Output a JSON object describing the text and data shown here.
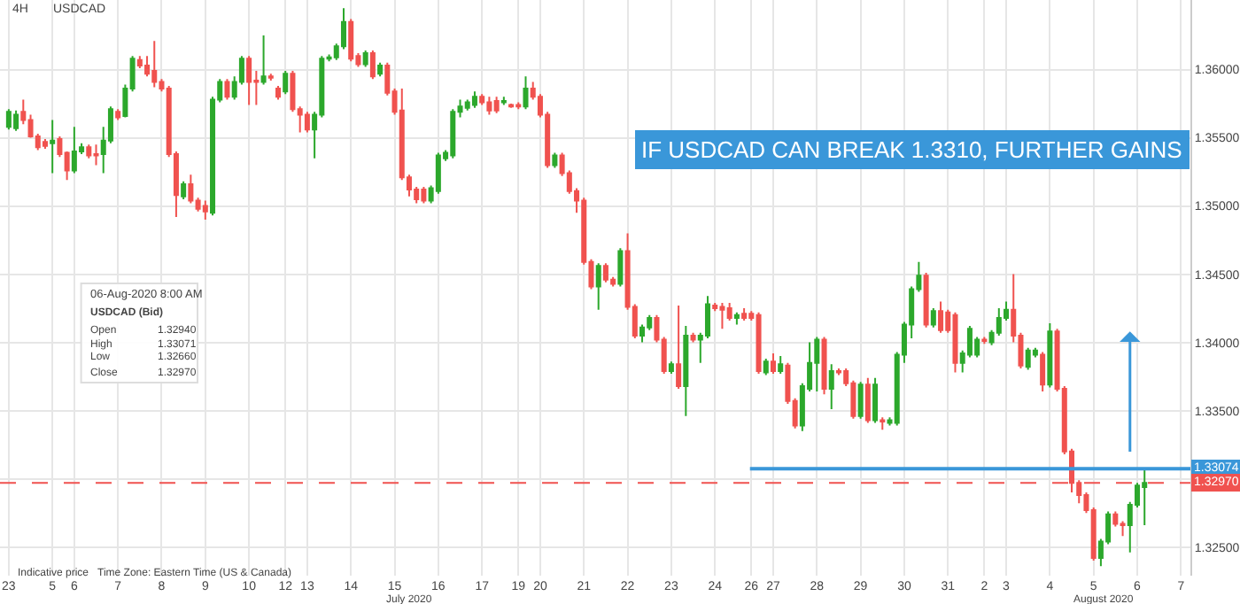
{
  "chart_data": {
    "type": "candlestick",
    "title": "IF USDCAD CAN BREAK 1.3310, FURTHER GAINS",
    "annotations": [
      "4H",
      "USDCAD",
      "06-Aug-2020 8:00 AM",
      "USDCAD (Bid)",
      "Open",
      "1.32940",
      "High",
      "1.33071",
      "Low",
      "1.32660",
      "Close",
      "1.32970",
      "Indicative price",
      "Time Zone: Eastern Time (US & Canada)",
      "July 2020",
      "August 2020"
    ],
    "categories": [
      "23",
      null,
      null,
      null,
      null,
      null,
      "5",
      null,
      null,
      "6",
      null,
      null,
      null,
      null,
      null,
      "7",
      null,
      null,
      null,
      null,
      null,
      "8",
      null,
      null,
      null,
      null,
      null,
      "9",
      null,
      null,
      null,
      null,
      null,
      "10",
      null,
      null,
      null,
      null,
      "12",
      null,
      null,
      "13",
      null,
      null,
      null,
      null,
      null,
      "14",
      null,
      null,
      null,
      null,
      null,
      "15",
      null,
      null,
      null,
      null,
      null,
      "16",
      null,
      null,
      null,
      null,
      null,
      "17",
      null,
      null,
      null,
      null,
      "19",
      null,
      null,
      "20",
      null,
      null,
      null,
      null,
      null,
      "21",
      null,
      null,
      null,
      null,
      null,
      "22",
      null,
      null,
      null,
      null,
      null,
      "23",
      null,
      null,
      null,
      null,
      null,
      "24",
      null,
      null,
      null,
      null,
      "26",
      null,
      null,
      "27",
      null,
      null,
      null,
      null,
      null,
      "28",
      null,
      null,
      null,
      null,
      null,
      "29",
      null,
      null,
      null,
      null,
      null,
      "30",
      null,
      null,
      null,
      null,
      null,
      "31",
      null,
      null,
      null,
      null,
      "2",
      null,
      null,
      "3",
      null,
      null,
      null,
      null,
      null,
      "4",
      null,
      null,
      null,
      null,
      null,
      "5",
      null,
      null,
      null,
      null,
      null,
      "6",
      null,
      null,
      null,
      null,
      null,
      "7"
    ],
    "colors": [
      "#2ca82c",
      "#2ca82c",
      "#f0524f",
      "#f0524f",
      "#f0524f",
      "#f0524f",
      "#2ca82c",
      "#f0524f",
      "#f0524f",
      "#2ca82c",
      "#2ca82c",
      "#f0524f",
      "#f0524f",
      "#2ca82c",
      "#2ca82c",
      "#f0524f",
      "#2ca82c",
      "#2ca82c",
      "#f0524f",
      "#f0524f",
      "#f0524f",
      "#f0524f",
      "#f0524f",
      "#f0524f",
      "#2ca82c",
      "#f0524f",
      "#f0524f",
      "#f0524f",
      "#2ca82c",
      "#2ca82c",
      "#f0524f",
      "#2ca82c",
      "#2ca82c",
      "#f0524f",
      "#f0524f",
      "#2ca82c",
      "#f0524f",
      "#f0524f",
      "#2ca82c",
      "#f0524f",
      "#f0524f",
      "#f0524f",
      "#2ca82c",
      "#2ca82c",
      "#2ca82c",
      "#2ca82c",
      "#2ca82c",
      "#f0524f",
      "#f0524f",
      "#2ca82c",
      "#f0524f",
      "#2ca82c",
      "#f0524f",
      "#f0524f",
      "#f0524f",
      "#f0524f",
      "#f0524f",
      "#f0524f",
      "#2ca82c",
      "#2ca82c",
      "#2ca82c",
      "#2ca82c",
      "#2ca82c",
      "#2ca82c",
      "#2ca82c",
      "#f0524f",
      "#f0524f",
      "#f0524f",
      "#2ca82c",
      "#f0524f",
      "#f0524f",
      "#2ca82c",
      "#f0524f",
      "#f0524f",
      "#f0524f",
      "#2ca82c",
      "#f0524f",
      "#f0524f",
      "#f0524f",
      "#f0524f",
      "#f0524f",
      "#2ca82c",
      "#f0524f",
      "#f0524f",
      "#2ca82c",
      "#f0524f",
      "#f0524f",
      "#2ca82c",
      "#2ca82c",
      "#f0524f",
      "#f0524f",
      "#2ca82c",
      "#f0524f",
      "#2ca82c",
      "#f0524f",
      "#2ca82c",
      "#2ca82c",
      "#f0524f",
      "#f0524f",
      "#f0524f",
      "#2ca82c",
      "#f0524f",
      "#f0524f",
      "#f0524f",
      "#2ca82c",
      "#f0524f",
      "#2ca82c",
      "#f0524f",
      "#f0524f",
      "#2ca82c",
      "#2ca82c",
      "#2ca82c",
      "#f0524f",
      "#2ca82c",
      "#f0524f",
      "#f0524f",
      "#f0524f",
      "#2ca82c",
      "#f0524f",
      "#2ca82c",
      "#f0524f",
      "#2ca82c",
      "#2ca82c",
      "#2ca82c",
      "#2ca82c",
      "#2ca82c",
      "#f0524f",
      "#2ca82c",
      "#f0524f",
      "#f0524f",
      "#f0524f",
      "#2ca82c",
      "#2ca82c",
      "#2ca82c",
      "#f0524f",
      "#2ca82c",
      "#2ca82c",
      "#2ca82c",
      "#f0524f",
      "#f0524f",
      "#2ca82c",
      "#2ca82c",
      "#f0524f",
      "#2ca82c",
      "#f0524f",
      "#f0524f",
      "#f0524f",
      "#f0524f",
      "#f0524f",
      "#f0524f",
      "#2ca82c",
      "#2ca82c",
      "#f0524f",
      "#f0524f",
      "#2ca82c",
      "#2ca82c",
      "#2ca82c",
      null,
      null,
      null,
      null,
      null
    ],
    "ohlc": [
      [
        1.3558,
        1.3571,
        1.3556,
        1.3569
      ],
      [
        1.3557,
        1.357,
        1.3555,
        1.3567
      ],
      [
        1.3569,
        1.3578,
        1.356,
        1.3563
      ],
      [
        1.3563,
        1.3567,
        1.355,
        1.3551
      ],
      [
        1.3551,
        1.3553,
        1.3541,
        1.3543
      ],
      [
        1.3547,
        1.3549,
        1.3542,
        1.3544
      ],
      [
        1.3546,
        1.3563,
        1.3524,
        1.3548
      ],
      [
        1.3549,
        1.3551,
        1.3536,
        1.3538
      ],
      [
        1.3539,
        1.354,
        1.3519,
        1.3526
      ],
      [
        1.3526,
        1.3558,
        1.3524,
        1.354
      ],
      [
        1.354,
        1.3546,
        1.3538,
        1.3543
      ],
      [
        1.3543,
        1.3545,
        1.3535,
        1.3537
      ],
      [
        1.3538,
        1.3545,
        1.353,
        1.3537
      ],
      [
        1.3538,
        1.3558,
        1.3524,
        1.3548
      ],
      [
        1.3548,
        1.3573,
        1.3546,
        1.3571
      ],
      [
        1.3569,
        1.3571,
        1.3563,
        1.3565
      ],
      [
        1.3566,
        1.3589,
        1.3565,
        1.3586
      ],
      [
        1.3586,
        1.361,
        1.3584,
        1.3608
      ],
      [
        1.3607,
        1.361,
        1.3601,
        1.3603
      ],
      [
        1.3603,
        1.361,
        1.3595,
        1.3597
      ],
      [
        1.3599,
        1.3621,
        1.3587,
        1.3591
      ],
      [
        1.3591,
        1.3593,
        1.3584,
        1.3586
      ],
      [
        1.3586,
        1.3588,
        1.3536,
        1.3538
      ],
      [
        1.3538,
        1.354,
        1.3492,
        1.3508
      ],
      [
        1.3507,
        1.3518,
        1.3505,
        1.3516
      ],
      [
        1.3516,
        1.3523,
        1.3502,
        1.3504
      ],
      [
        1.3504,
        1.3506,
        1.3496,
        1.3498
      ],
      [
        1.35,
        1.3504,
        1.349,
        1.3496
      ],
      [
        1.3495,
        1.358,
        1.3493,
        1.3578
      ],
      [
        1.3578,
        1.3593,
        1.3576,
        1.3591
      ],
      [
        1.3591,
        1.3593,
        1.3578,
        1.358
      ],
      [
        1.358,
        1.3595,
        1.3578,
        1.3591
      ],
      [
        1.3591,
        1.361,
        1.3589,
        1.3608
      ],
      [
        1.3608,
        1.361,
        1.3574,
        1.3591
      ],
      [
        1.3592,
        1.3599,
        1.3574,
        1.3591
      ],
      [
        1.3591,
        1.3625,
        1.3589,
        1.3595
      ],
      [
        1.3595,
        1.3597,
        1.3592,
        1.3594
      ],
      [
        1.3586,
        1.3588,
        1.3578,
        1.358
      ],
      [
        1.3584,
        1.3599,
        1.3582,
        1.3597
      ],
      [
        1.3597,
        1.3599,
        1.3569,
        1.3571
      ],
      [
        1.3571,
        1.3573,
        1.3554,
        1.3567
      ],
      [
        1.3567,
        1.3569,
        1.3554,
        1.3556
      ],
      [
        1.3556,
        1.3569,
        1.3535,
        1.3567
      ],
      [
        1.3567,
        1.361,
        1.3565,
        1.3608
      ],
      [
        1.3608,
        1.3611,
        1.3606,
        1.3609
      ],
      [
        1.3609,
        1.3619,
        1.3607,
        1.3617
      ],
      [
        1.3617,
        1.3645,
        1.3615,
        1.3635
      ],
      [
        1.3635,
        1.3637,
        1.3606,
        1.3608
      ],
      [
        1.361,
        1.3612,
        1.3602,
        1.3604
      ],
      [
        1.3604,
        1.3614,
        1.3602,
        1.3612
      ],
      [
        1.3612,
        1.3614,
        1.3593,
        1.3595
      ],
      [
        1.3597,
        1.3605,
        1.3595,
        1.3603
      ],
      [
        1.3603,
        1.3605,
        1.3581,
        1.3583
      ],
      [
        1.3584,
        1.3586,
        1.3567,
        1.3569
      ],
      [
        1.357,
        1.3586,
        1.3519,
        1.3521
      ],
      [
        1.3521,
        1.3523,
        1.3507,
        1.3512
      ],
      [
        1.3512,
        1.3514,
        1.3502,
        1.3505
      ],
      [
        1.3512,
        1.3514,
        1.3502,
        1.3504
      ],
      [
        1.3504,
        1.3515,
        1.3502,
        1.3513
      ],
      [
        1.3511,
        1.3539,
        1.3509,
        1.3537
      ],
      [
        1.3535,
        1.3541,
        1.3533,
        1.3539
      ],
      [
        1.3537,
        1.3571,
        1.3535,
        1.3569
      ],
      [
        1.3569,
        1.3578,
        1.3565,
        1.3573
      ],
      [
        1.3572,
        1.3578,
        1.357,
        1.3576
      ],
      [
        1.3574,
        1.3584,
        1.3572,
        1.358
      ],
      [
        1.358,
        1.3582,
        1.3574,
        1.3576
      ],
      [
        1.3576,
        1.358,
        1.3567,
        1.357
      ],
      [
        1.3577,
        1.358,
        1.3568,
        1.357
      ],
      [
        1.3576,
        1.358,
        1.3574,
        1.3577
      ],
      [
        1.3574,
        1.3575,
        1.3572,
        1.3573
      ],
      [
        1.3574,
        1.3576,
        1.3571,
        1.3573
      ],
      [
        1.3573,
        1.3595,
        1.3571,
        1.3586
      ],
      [
        1.3586,
        1.3591,
        1.3578,
        1.358
      ],
      [
        1.358,
        1.3582,
        1.3565,
        1.3567
      ],
      [
        1.3567,
        1.3569,
        1.3528,
        1.353
      ],
      [
        1.353,
        1.3539,
        1.3528,
        1.3537
      ],
      [
        1.3537,
        1.3539,
        1.3522,
        1.3524
      ],
      [
        1.3524,
        1.3526,
        1.3509,
        1.3511
      ],
      [
        1.3511,
        1.3513,
        1.3495,
        1.3504
      ],
      [
        1.3504,
        1.3506,
        1.3457,
        1.3459
      ],
      [
        1.3459,
        1.3461,
        1.3439,
        1.3441
      ],
      [
        1.3441,
        1.3458,
        1.3424,
        1.3456
      ],
      [
        1.3456,
        1.3458,
        1.3444,
        1.3446
      ],
      [
        1.3446,
        1.3448,
        1.3441,
        1.3443
      ],
      [
        1.3443,
        1.3469,
        1.3441,
        1.3467
      ],
      [
        1.3467,
        1.348,
        1.3424,
        1.3426
      ],
      [
        1.3426,
        1.3428,
        1.3403,
        1.3405
      ],
      [
        1.3405,
        1.3413,
        1.34,
        1.3411
      ],
      [
        1.3411,
        1.342,
        1.3409,
        1.3418
      ],
      [
        1.3418,
        1.342,
        1.34,
        1.3402
      ],
      [
        1.3402,
        1.3404,
        1.3377,
        1.3379
      ],
      [
        1.3379,
        1.3386,
        1.3377,
        1.3384
      ],
      [
        1.3384,
        1.3427,
        1.3366,
        1.3368
      ],
      [
        1.3368,
        1.3412,
        1.3346,
        1.3405
      ],
      [
        1.3405,
        1.3407,
        1.34,
        1.3402
      ],
      [
        1.3402,
        1.3407,
        1.3385,
        1.3405
      ],
      [
        1.3405,
        1.3434,
        1.3403,
        1.3428
      ],
      [
        1.3427,
        1.3429,
        1.3423,
        1.3425
      ],
      [
        1.3426,
        1.3429,
        1.341,
        1.3424
      ],
      [
        1.3425,
        1.3429,
        1.3416,
        1.3418
      ],
      [
        1.3418,
        1.3422,
        1.3413,
        1.342
      ],
      [
        1.3421,
        1.3425,
        1.3416,
        1.3418
      ],
      [
        1.3421,
        1.3423,
        1.3416,
        1.3418
      ],
      [
        1.342,
        1.3422,
        1.3377,
        1.3379
      ],
      [
        1.3378,
        1.3388,
        1.3376,
        1.3386
      ],
      [
        1.3386,
        1.3392,
        1.3377,
        1.3379
      ],
      [
        1.3379,
        1.339,
        1.3377,
        1.3384
      ],
      [
        1.3383,
        1.3385,
        1.3355,
        1.3357
      ],
      [
        1.3357,
        1.3359,
        1.3337,
        1.3339
      ],
      [
        1.3339,
        1.337,
        1.3335,
        1.3368
      ],
      [
        1.3366,
        1.34,
        1.3364,
        1.3385
      ],
      [
        1.3385,
        1.3404,
        1.3364,
        1.3402
      ],
      [
        1.3402,
        1.3404,
        1.3362,
        1.3366
      ],
      [
        1.3366,
        1.3384,
        1.3351,
        1.3379
      ],
      [
        1.3379,
        1.3381,
        1.3376,
        1.3378
      ],
      [
        1.3379,
        1.3381,
        1.3368,
        1.337
      ],
      [
        1.337,
        1.3372,
        1.3344,
        1.3346
      ],
      [
        1.3346,
        1.3371,
        1.3344,
        1.3369
      ],
      [
        1.3369,
        1.3374,
        1.3341,
        1.3343
      ],
      [
        1.3343,
        1.3374,
        1.3341,
        1.3369
      ],
      [
        1.3343,
        1.3345,
        1.3336,
        1.3342
      ],
      [
        1.3341,
        1.3345,
        1.3339,
        1.3343
      ],
      [
        1.3341,
        1.3393,
        1.3339,
        1.3391
      ],
      [
        1.3391,
        1.3415,
        1.3385,
        1.3413
      ],
      [
        1.3413,
        1.3441,
        1.3403,
        1.3439
      ],
      [
        1.3439,
        1.3459,
        1.3437,
        1.3449
      ],
      [
        1.3449,
        1.3451,
        1.3411,
        1.3413
      ],
      [
        1.3413,
        1.3425,
        1.3411,
        1.3423
      ],
      [
        1.3423,
        1.343,
        1.3407,
        1.3409
      ],
      [
        1.3422,
        1.3424,
        1.3407,
        1.3409
      ],
      [
        1.342,
        1.3422,
        1.3378,
        1.3385
      ],
      [
        1.3385,
        1.3394,
        1.3378,
        1.3392
      ],
      [
        1.3391,
        1.3412,
        1.3389,
        1.341
      ],
      [
        1.3391,
        1.3404,
        1.3389,
        1.3402
      ],
      [
        1.3402,
        1.3404,
        1.3399,
        1.3401
      ],
      [
        1.34,
        1.3409,
        1.3398,
        1.3407
      ],
      [
        1.3407,
        1.3425,
        1.3405,
        1.3418
      ],
      [
        1.3418,
        1.343,
        1.3416,
        1.3424
      ],
      [
        1.3424,
        1.345,
        1.34,
        1.3405
      ],
      [
        1.3405,
        1.3407,
        1.3381,
        1.3383
      ],
      [
        1.3382,
        1.3396,
        1.338,
        1.3394
      ],
      [
        1.3391,
        1.3396,
        1.3389,
        1.3394
      ],
      [
        1.3391,
        1.3393,
        1.3364,
        1.3369
      ],
      [
        1.3369,
        1.3414,
        1.3367,
        1.3408
      ],
      [
        1.3408,
        1.341,
        1.3364,
        1.3366
      ],
      [
        1.3366,
        1.3368,
        1.3318,
        1.332
      ],
      [
        1.332,
        1.3322,
        1.329,
        1.3297
      ],
      [
        1.3297,
        1.3299,
        1.3282,
        1.3288
      ],
      [
        1.3288,
        1.329,
        1.3275,
        1.3277
      ],
      [
        1.3277,
        1.3279,
        1.324,
        1.3242
      ],
      [
        1.3242,
        1.3256,
        1.3236,
        1.3254
      ],
      [
        1.3254,
        1.3276,
        1.3252,
        1.3274
      ],
      [
        1.3274,
        1.3276,
        1.3265,
        1.3267
      ],
      [
        1.3267,
        1.3269,
        1.3258,
        1.3266
      ],
      [
        1.3266,
        1.3283,
        1.3246,
        1.3281
      ],
      [
        1.3281,
        1.3297,
        1.3279,
        1.3295
      ],
      [
        1.3294,
        1.33071,
        1.3266,
        1.3297
      ],
      null,
      null,
      null,
      null,
      null
    ],
    "ylim": [
      1.3229,
      1.3651
    ],
    "yticks": [
      {
        "value": 1.325,
        "label": "1.32500"
      },
      {
        "value": 1.33,
        "label": null
      },
      {
        "value": 1.335,
        "label": "1.33500"
      },
      {
        "value": 1.34,
        "label": "1.34000"
      },
      {
        "value": 1.345,
        "label": "1.34500"
      },
      {
        "value": 1.35,
        "label": "1.35000"
      },
      {
        "value": 1.355,
        "label": "1.35500"
      },
      {
        "value": 1.36,
        "label": "1.36000"
      }
    ],
    "ref_lines": [
      {
        "axis": "y",
        "value": 1.33074,
        "label": "1.33074",
        "color": "#3a97d9",
        "line_style": "solid"
      },
      {
        "axis": "y",
        "value": 1.3297,
        "label": "1.32970",
        "color": "#f0524f",
        "line_style": "dashed"
      }
    ],
    "grid": true
  }
}
